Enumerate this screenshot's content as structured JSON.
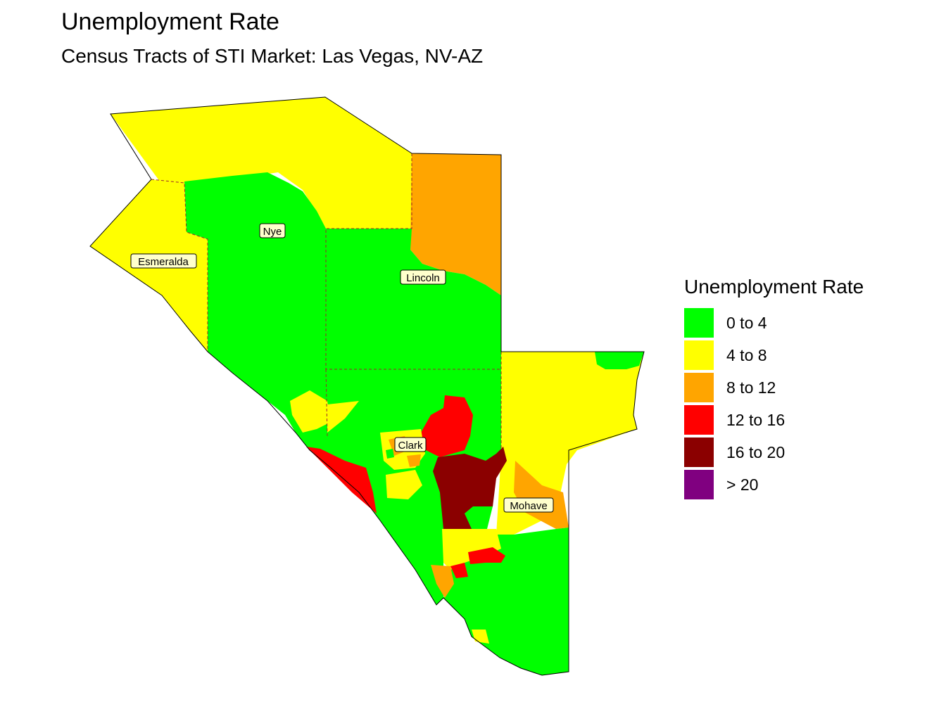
{
  "title": "Unemployment Rate",
  "subtitle": "Census Tracts of STI Market: Las Vegas, NV-AZ",
  "legend": {
    "title": "Unemployment Rate",
    "items": [
      {
        "label": "0 to 4",
        "color": "#00ff00"
      },
      {
        "label": "4 to 8",
        "color": "#ffff00"
      },
      {
        "label": "8 to 12",
        "color": "#ffa500"
      },
      {
        "label": "12 to 16",
        "color": "#ff0000"
      },
      {
        "label": "16 to 20",
        "color": "#8b0000"
      },
      {
        "label": "> 20",
        "color": "#800080"
      }
    ]
  },
  "counties": {
    "esmeralda": "Esmeralda",
    "nye": "Nye",
    "lincoln": "Lincoln",
    "clark": "Clark",
    "mohave": "Mohave"
  },
  "colors": {
    "c0_4": "#00ff00",
    "c4_8": "#ffff00",
    "c8_12": "#ffa500",
    "c12_16": "#ff0000",
    "c16_20": "#8b0000"
  }
}
